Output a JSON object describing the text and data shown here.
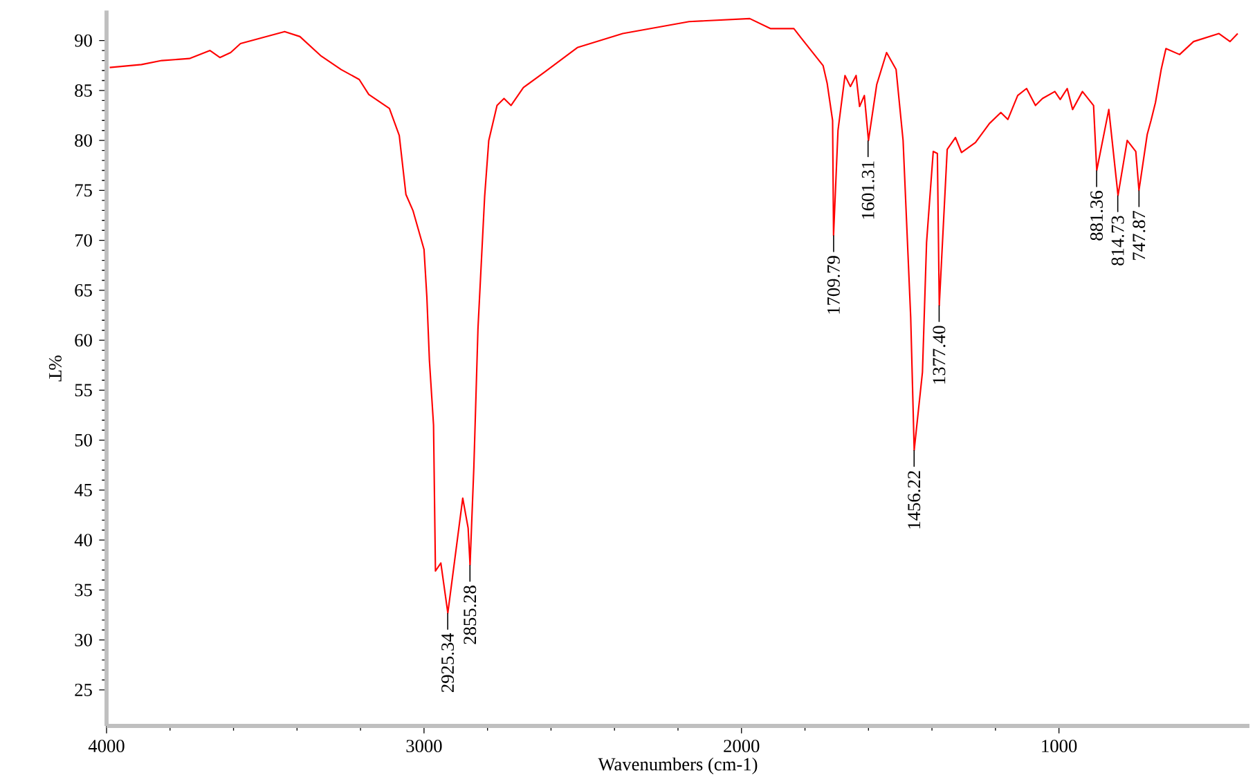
{
  "chart_data": {
    "type": "line",
    "xlabel": "Wavenumbers (cm-1)",
    "ylabel": "%T",
    "xlim": [
      4000,
      400
    ],
    "ylim": [
      21.4,
      93
    ],
    "xticks": [
      4000,
      3000,
      2000,
      1000
    ],
    "yticks": [
      25,
      30,
      35,
      40,
      45,
      50,
      55,
      60,
      65,
      70,
      75,
      80,
      85,
      90
    ],
    "x": [
      3990,
      3890,
      3826,
      3739,
      3674,
      3643,
      3609,
      3578,
      3439,
      3391,
      3326,
      3261,
      3204,
      3174,
      3109,
      3078,
      3057,
      3035,
      3000,
      2991,
      2983,
      2970,
      2964,
      2947,
      2925,
      2878,
      2861,
      2855,
      2843,
      2830,
      2809,
      2796,
      2770,
      2748,
      2726,
      2687,
      2622,
      2517,
      2374,
      2165,
      1974,
      1909,
      1835,
      1813,
      1743,
      1730,
      1713,
      1710,
      1696,
      1674,
      1657,
      1639,
      1628,
      1613,
      1600,
      1574,
      1543,
      1513,
      1491,
      1467,
      1456,
      1430,
      1417,
      1396,
      1383,
      1377,
      1352,
      1326,
      1307,
      1263,
      1219,
      1183,
      1161,
      1130,
      1102,
      1074,
      1052,
      1013,
      996,
      974,
      957,
      926,
      891,
      881,
      843,
      814,
      785,
      758,
      748,
      722,
      710,
      696,
      678,
      663,
      620,
      576,
      496,
      461,
      437
    ],
    "series": [
      {
        "color": "#ff0000",
        "values": [
          87.3,
          87.6,
          88.0,
          88.2,
          89.0,
          88.3,
          88.8,
          89.7,
          90.9,
          90.4,
          88.5,
          87.1,
          86.1,
          84.6,
          83.2,
          80.5,
          74.6,
          73.0,
          69.1,
          64.3,
          58.0,
          51.5,
          36.9,
          37.7,
          32.7,
          44.2,
          41.2,
          37.5,
          47.3,
          61.2,
          74.4,
          80.0,
          83.5,
          84.2,
          83.5,
          85.3,
          86.8,
          89.3,
          90.7,
          91.9,
          92.2,
          91.2,
          91.2,
          90.3,
          87.5,
          85.7,
          82.0,
          70.5,
          81.0,
          86.5,
          85.4,
          86.5,
          83.4,
          84.5,
          80.0,
          85.6,
          88.8,
          87.1,
          80.0,
          62.3,
          49.0,
          56.8,
          69.8,
          78.9,
          78.7,
          63.5,
          79.1,
          80.3,
          78.8,
          79.8,
          81.7,
          82.8,
          82.1,
          84.5,
          85.2,
          83.5,
          84.2,
          84.9,
          84.1,
          85.2,
          83.1,
          84.9,
          83.5,
          77.0,
          83.1,
          74.5,
          80.0,
          78.9,
          75.0,
          80.6,
          82.0,
          83.8,
          87.1,
          89.2,
          88.6,
          89.9,
          90.7,
          89.9,
          90.7
        ]
      }
    ],
    "annotations": [
      {
        "text": "2925.34",
        "x": 2925.34,
        "y": 32.7
      },
      {
        "text": "2855.28",
        "x": 2855.28,
        "y": 37.5
      },
      {
        "text": "1709.79",
        "x": 1709.79,
        "y": 70.5
      },
      {
        "text": "1601.31",
        "x": 1601.31,
        "y": 80.0
      },
      {
        "text": "1456.22",
        "x": 1456.22,
        "y": 49.0
      },
      {
        "text": "1377.40",
        "x": 1377.4,
        "y": 63.5
      },
      {
        "text": "881.36",
        "x": 881.36,
        "y": 77.0
      },
      {
        "text": "814.73",
        "x": 814.73,
        "y": 74.5
      },
      {
        "text": "747.87",
        "x": 747.87,
        "y": 75.0
      }
    ]
  }
}
